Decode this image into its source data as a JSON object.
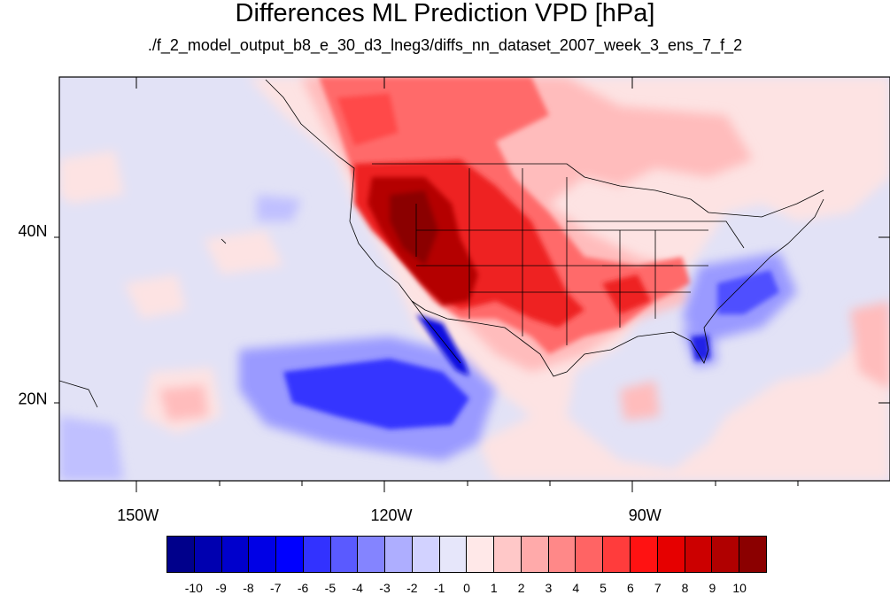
{
  "title": "Differences ML Prediction VPD [hPa]",
  "subtitle": "./f_2_model_output_b8_e_30_d3_lneg3/diffs_nn_dataset_2007_week_3_ens_7_f_2",
  "map": {
    "lon_range": [
      -159.3,
      -61.0
    ],
    "lat_range": [
      10.2,
      58.4
    ],
    "lon_labels": [
      {
        "lon": -150,
        "text": "150W"
      },
      {
        "lon": -120,
        "text": "120W"
      },
      {
        "lon": -90,
        "text": "90W"
      }
    ],
    "lat_labels": [
      {
        "lat": 40,
        "text": "40N"
      },
      {
        "lat": 20,
        "text": "20N"
      }
    ],
    "background_color": "#e2e2f6"
  },
  "colorbar": {
    "colors": [
      "#00008b",
      "#0000b0",
      "#0000cc",
      "#0000e6",
      "#0000ff",
      "#3232ff",
      "#5a5aff",
      "#8484ff",
      "#aeaeff",
      "#d2d2ff",
      "#e6e6fa",
      "#ffe8e8",
      "#ffc8c8",
      "#ffaaaa",
      "#ff8888",
      "#ff6464",
      "#ff3c3c",
      "#ff1212",
      "#e60000",
      "#cc0000",
      "#b00000",
      "#8b0000"
    ],
    "labels": [
      "-10",
      "-9",
      "-8",
      "-7",
      "-6",
      "-5",
      "-4",
      "-3",
      "-2",
      "-1",
      "0",
      "1",
      "2",
      "3",
      "4",
      "5",
      "6",
      "7",
      "8",
      "9",
      "10"
    ]
  }
}
